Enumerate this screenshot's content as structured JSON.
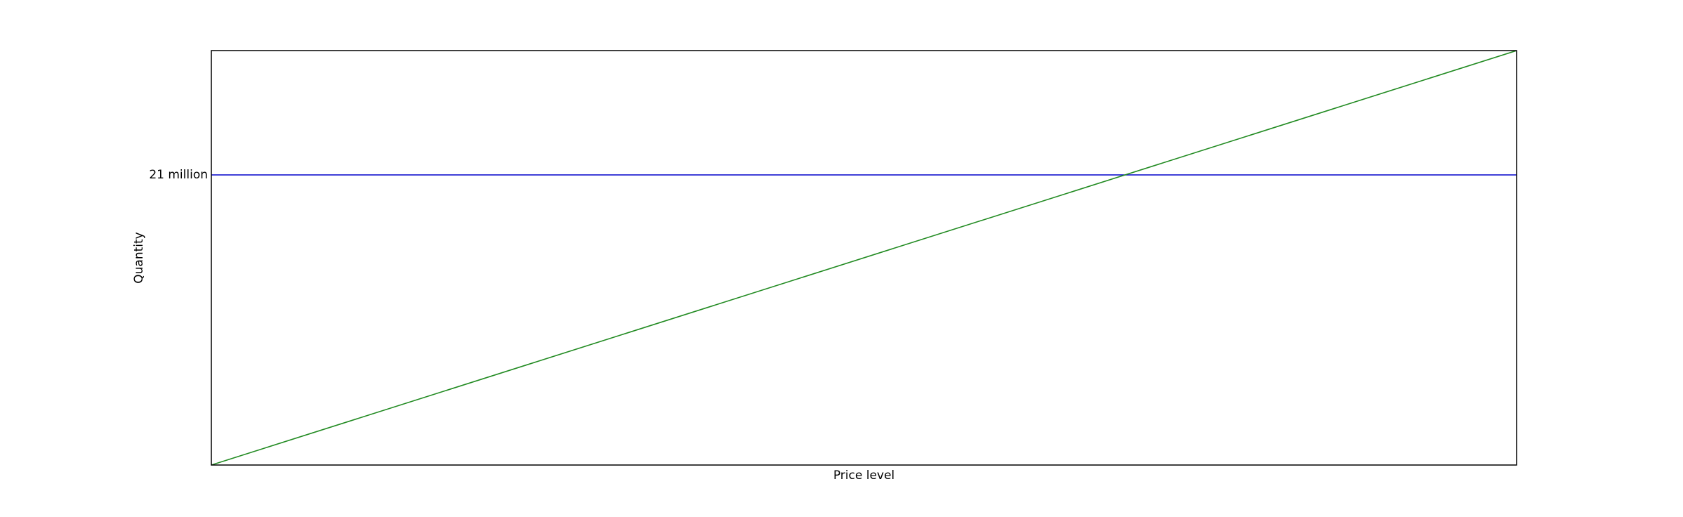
{
  "chart_data": {
    "type": "line",
    "xlabel": "Price level",
    "ylabel": "Quantity",
    "xlim": [
      0,
      1
    ],
    "ylim": [
      0,
      1
    ],
    "grid": false,
    "legend": "none",
    "y_ticks": [
      {
        "value": 0.7,
        "label": "21 million"
      }
    ],
    "series": [
      {
        "x": [
          0,
          1
        ],
        "y": [
          0.7,
          0.7
        ],
        "color": "#0000cc"
      },
      {
        "x": [
          0,
          1
        ],
        "y": [
          0,
          1
        ],
        "color": "#228b22"
      }
    ]
  }
}
